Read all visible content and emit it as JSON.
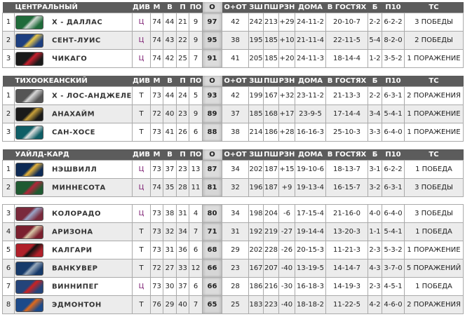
{
  "headers": {
    "div": "ДИВ",
    "m": "М",
    "w": "В",
    "l": "П",
    "ot": "ПО",
    "pts": "О",
    "wot": "О+ОТ",
    "gf": "ЗШ",
    "ga": "ПШ",
    "diff": "РЗН",
    "home": "ДОМА",
    "away": "В ГОСТЯХ",
    "so": "Б",
    "l10": "П10",
    "strk": "ТС"
  },
  "sections": [
    {
      "title": "ЦЕНТРАЛЬНЫЙ",
      "rows": [
        [
          "1",
          "Х - ДАЛЛАС",
          "Ц",
          "74",
          "44",
          "21",
          "9",
          "97",
          "42",
          "242",
          "213",
          "+29",
          "24-11-2",
          "20-10-7",
          "2-2",
          "6-2-2",
          "3 ПОБЕДЫ"
        ],
        [
          "2",
          "СЕНТ-ЛУИС",
          "Ц",
          "74",
          "43",
          "22",
          "9",
          "95",
          "38",
          "195",
          "185",
          "+10",
          "21-11-4",
          "22-11-5",
          "5-4",
          "8-2-0",
          "2 ПОБЕДЫ"
        ],
        [
          "3",
          "ЧИКАГО",
          "Ц",
          "74",
          "42",
          "25",
          "7",
          "91",
          "41",
          "205",
          "185",
          "+20",
          "24-11-3",
          "18-14-4",
          "1-2",
          "3-5-2",
          "1 ПОРАЖЕНИЕ"
        ]
      ]
    },
    {
      "title": "ТИХООКЕАНСКИЙ",
      "rows": [
        [
          "1",
          "Х - ЛОС-АНДЖЕЛЕС",
          "Т",
          "73",
          "44",
          "24",
          "5",
          "93",
          "42",
          "199",
          "167",
          "+32",
          "23-11-2",
          "21-13-3",
          "2-2",
          "6-3-1",
          "2 ПОРАЖЕНИЯ"
        ],
        [
          "2",
          "АНАХАЙМ",
          "Т",
          "72",
          "40",
          "23",
          "9",
          "89",
          "37",
          "185",
          "168",
          "+17",
          "23-9-5",
          "17-14-4",
          "3-4",
          "5-4-1",
          "1 ПОРАЖЕНИЕ"
        ],
        [
          "3",
          "САН-ХОСЕ",
          "Т",
          "73",
          "41",
          "26",
          "6",
          "88",
          "38",
          "214",
          "186",
          "+28",
          "16-16-3",
          "25-10-3",
          "3-3",
          "6-4-0",
          "1 ПОРАЖЕНИЕ"
        ]
      ]
    },
    {
      "title": "УАЙЛД-КАРД",
      "rows": [
        [
          "1",
          "НЭШВИЛЛ",
          "Ц",
          "73",
          "37",
          "23",
          "13",
          "87",
          "34",
          "202",
          "187",
          "+15",
          "19-10-6",
          "18-13-7",
          "3-1",
          "6-2-2",
          "1 ПОБЕДА"
        ],
        [
          "2",
          "МИННЕСОТА",
          "Ц",
          "74",
          "35",
          "28",
          "11",
          "81",
          "32",
          "196",
          "187",
          "+9",
          "19-13-4",
          "16-15-7",
          "3-2",
          "6-3-1",
          "3 ПОБЕДЫ"
        ]
      ]
    },
    {
      "title": "",
      "rows": [
        [
          "3",
          "КОЛОРАДО",
          "Ц",
          "73",
          "38",
          "31",
          "4",
          "80",
          "34",
          "198",
          "204",
          "-6",
          "17-15-4",
          "21-16-0",
          "4-0",
          "6-4-0",
          "3 ПОБЕДЫ"
        ],
        [
          "4",
          "АРИЗОНА",
          "Т",
          "73",
          "32",
          "34",
          "7",
          "71",
          "31",
          "192",
          "219",
          "-27",
          "19-14-4",
          "13-20-3",
          "1-1",
          "5-4-1",
          "1 ПОБЕДА"
        ],
        [
          "5",
          "КАЛГАРИ",
          "Т",
          "73",
          "31",
          "36",
          "6",
          "68",
          "29",
          "202",
          "228",
          "-26",
          "20-15-3",
          "11-21-3",
          "2-3",
          "5-3-2",
          "1 ПОРАЖЕНИЕ"
        ],
        [
          "6",
          "ВАНКУВЕР",
          "Т",
          "72",
          "27",
          "33",
          "12",
          "66",
          "23",
          "167",
          "207",
          "-40",
          "13-19-5",
          "14-14-7",
          "4-3",
          "3-7-0",
          "5 ПОРАЖЕНИЙ"
        ],
        [
          "7",
          "ВИННИПЕГ",
          "Ц",
          "73",
          "30",
          "37",
          "6",
          "66",
          "28",
          "186",
          "216",
          "-30",
          "16-18-3",
          "14-19-3",
          "2-3",
          "4-5-1",
          "1 ПОБЕДА"
        ],
        [
          "8",
          "ЭДМОНТОН",
          "Т",
          "76",
          "29",
          "40",
          "7",
          "65",
          "25",
          "183",
          "223",
          "-40",
          "18-18-2",
          "11-22-5",
          "4-2",
          "4-6-0",
          "2 ПОРАЖЕНИЯ"
        ]
      ]
    }
  ],
  "logo_colors": [
    [
      "#1f6b3a",
      "#cfd8d0"
    ],
    [
      "#1d3f80",
      "#e8c74a"
    ],
    [
      "#1a1a1a",
      "#c8202e"
    ],
    [
      "#555",
      "#d8d8d8"
    ],
    [
      "#1a1a1a",
      "#c9a13b"
    ],
    [
      "#0f5e66",
      "#e0e0e0"
    ],
    [
      "#0d2a55",
      "#e6b33a"
    ],
    [
      "#1f5a32",
      "#b3253a"
    ],
    [
      "#7a2a3c",
      "#9aa6c8"
    ],
    [
      "#7a1f2e",
      "#d8c8a8"
    ],
    [
      "#b0202a",
      "#111"
    ],
    [
      "#163a6a",
      "#9ab"
    ],
    [
      "#24447a",
      "#c22"
    ],
    [
      "#1c4a8a",
      "#e06a1c"
    ]
  ]
}
